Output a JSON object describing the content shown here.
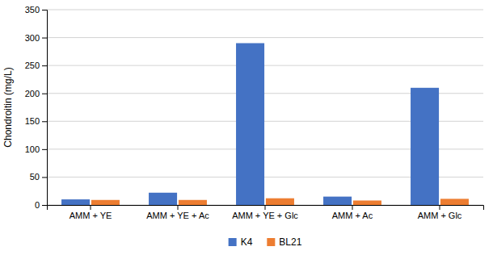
{
  "chart_data": {
    "type": "bar",
    "categories": [
      "AMM + YE",
      "AMM + YE + Ac",
      "AMM + YE + Glc",
      "AMM + Ac",
      "AMM + Glc"
    ],
    "series": [
      {
        "name": "K4",
        "color": "#4472C4",
        "values": [
          10,
          22,
          290,
          15,
          210
        ]
      },
      {
        "name": "BL21",
        "color": "#ED7D31",
        "values": [
          9,
          9,
          12,
          8,
          11
        ]
      }
    ],
    "ylabel": "Chondroitin (mg/L)",
    "ylim": [
      0,
      350
    ],
    "yticks": [
      0,
      50,
      100,
      150,
      200,
      250,
      300,
      350
    ],
    "grid": true,
    "legend": "bottom"
  }
}
